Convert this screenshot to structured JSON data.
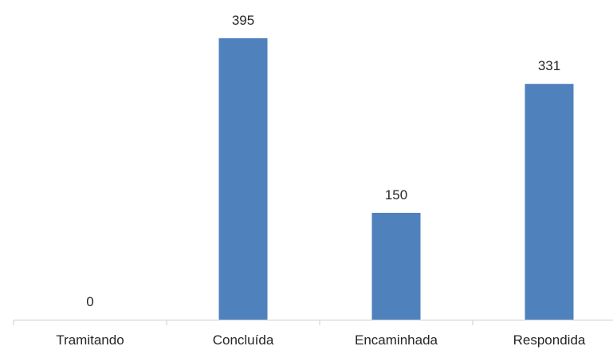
{
  "chart_data": {
    "type": "bar",
    "categories": [
      "Tramitando",
      "Concluída",
      "Encaminhada",
      "Respondida"
    ],
    "values": [
      0,
      395,
      150,
      331
    ],
    "ylim": [
      0,
      395
    ],
    "grid": false,
    "legend": "none",
    "colors": {
      "bar": "#4f81bd",
      "axis": "#d9d9d9",
      "text": "#262626"
    }
  }
}
